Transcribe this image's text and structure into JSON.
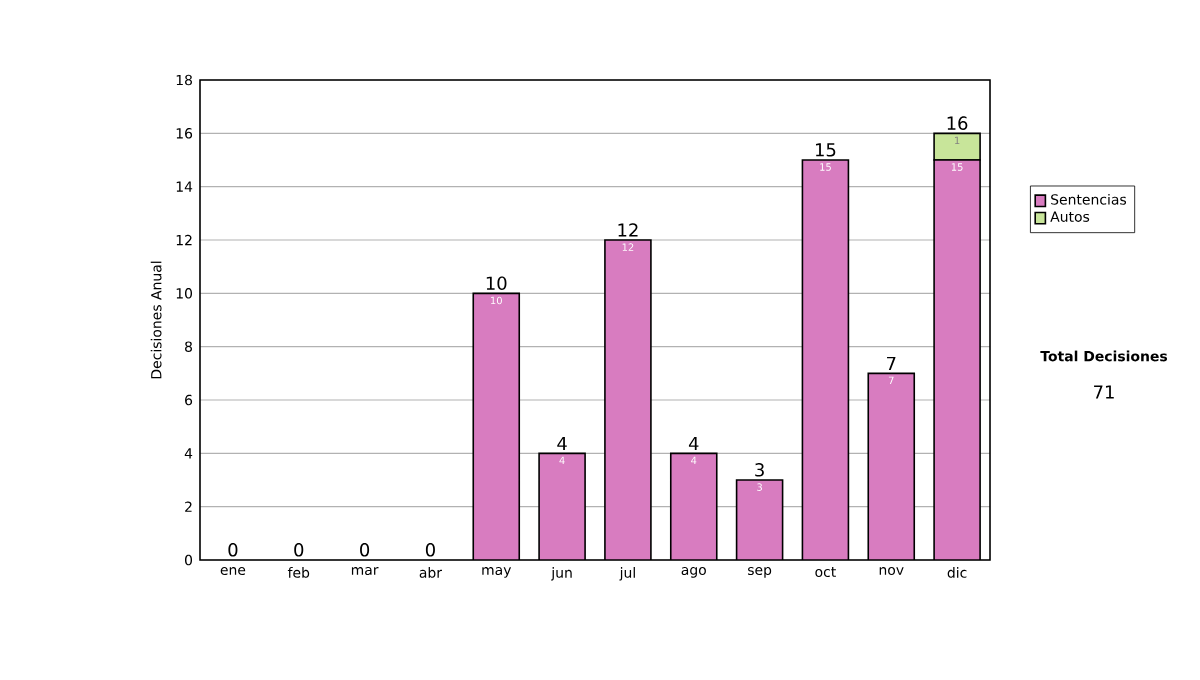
{
  "chart_data": {
    "type": "bar",
    "stacked": true,
    "ylabel": "Decisiones Anual",
    "categories": [
      "ene",
      "feb",
      "mar",
      "abr",
      "may",
      "jun",
      "jul",
      "ago",
      "sep",
      "oct",
      "nov",
      "dic"
    ],
    "series": [
      {
        "name": "Sentencias",
        "color": "#d87cc0",
        "values": [
          0,
          0,
          0,
          0,
          10,
          4,
          12,
          4,
          3,
          15,
          7,
          15
        ],
        "value_labels": [
          null,
          null,
          null,
          null,
          "10",
          "4",
          "12",
          "4",
          "3",
          "15",
          "7",
          "15"
        ]
      },
      {
        "name": "Autos",
        "color": "#c8e59a",
        "values": [
          0,
          0,
          0,
          0,
          0,
          0,
          0,
          0,
          0,
          0,
          0,
          1
        ],
        "value_labels": [
          null,
          null,
          null,
          null,
          null,
          null,
          null,
          null,
          null,
          null,
          null,
          "1"
        ]
      }
    ],
    "totals": [
      "0",
      "0",
      "0",
      "0",
      "10",
      "4",
      "12",
      "4",
      "3",
      "15",
      "7",
      "16"
    ],
    "ylim": [
      0,
      18
    ],
    "yticks": [
      0,
      2,
      4,
      6,
      8,
      10,
      12,
      14,
      16,
      18
    ],
    "grid": "y",
    "legend": "right",
    "annotations": [
      "Total Decisiones",
      "71"
    ]
  }
}
